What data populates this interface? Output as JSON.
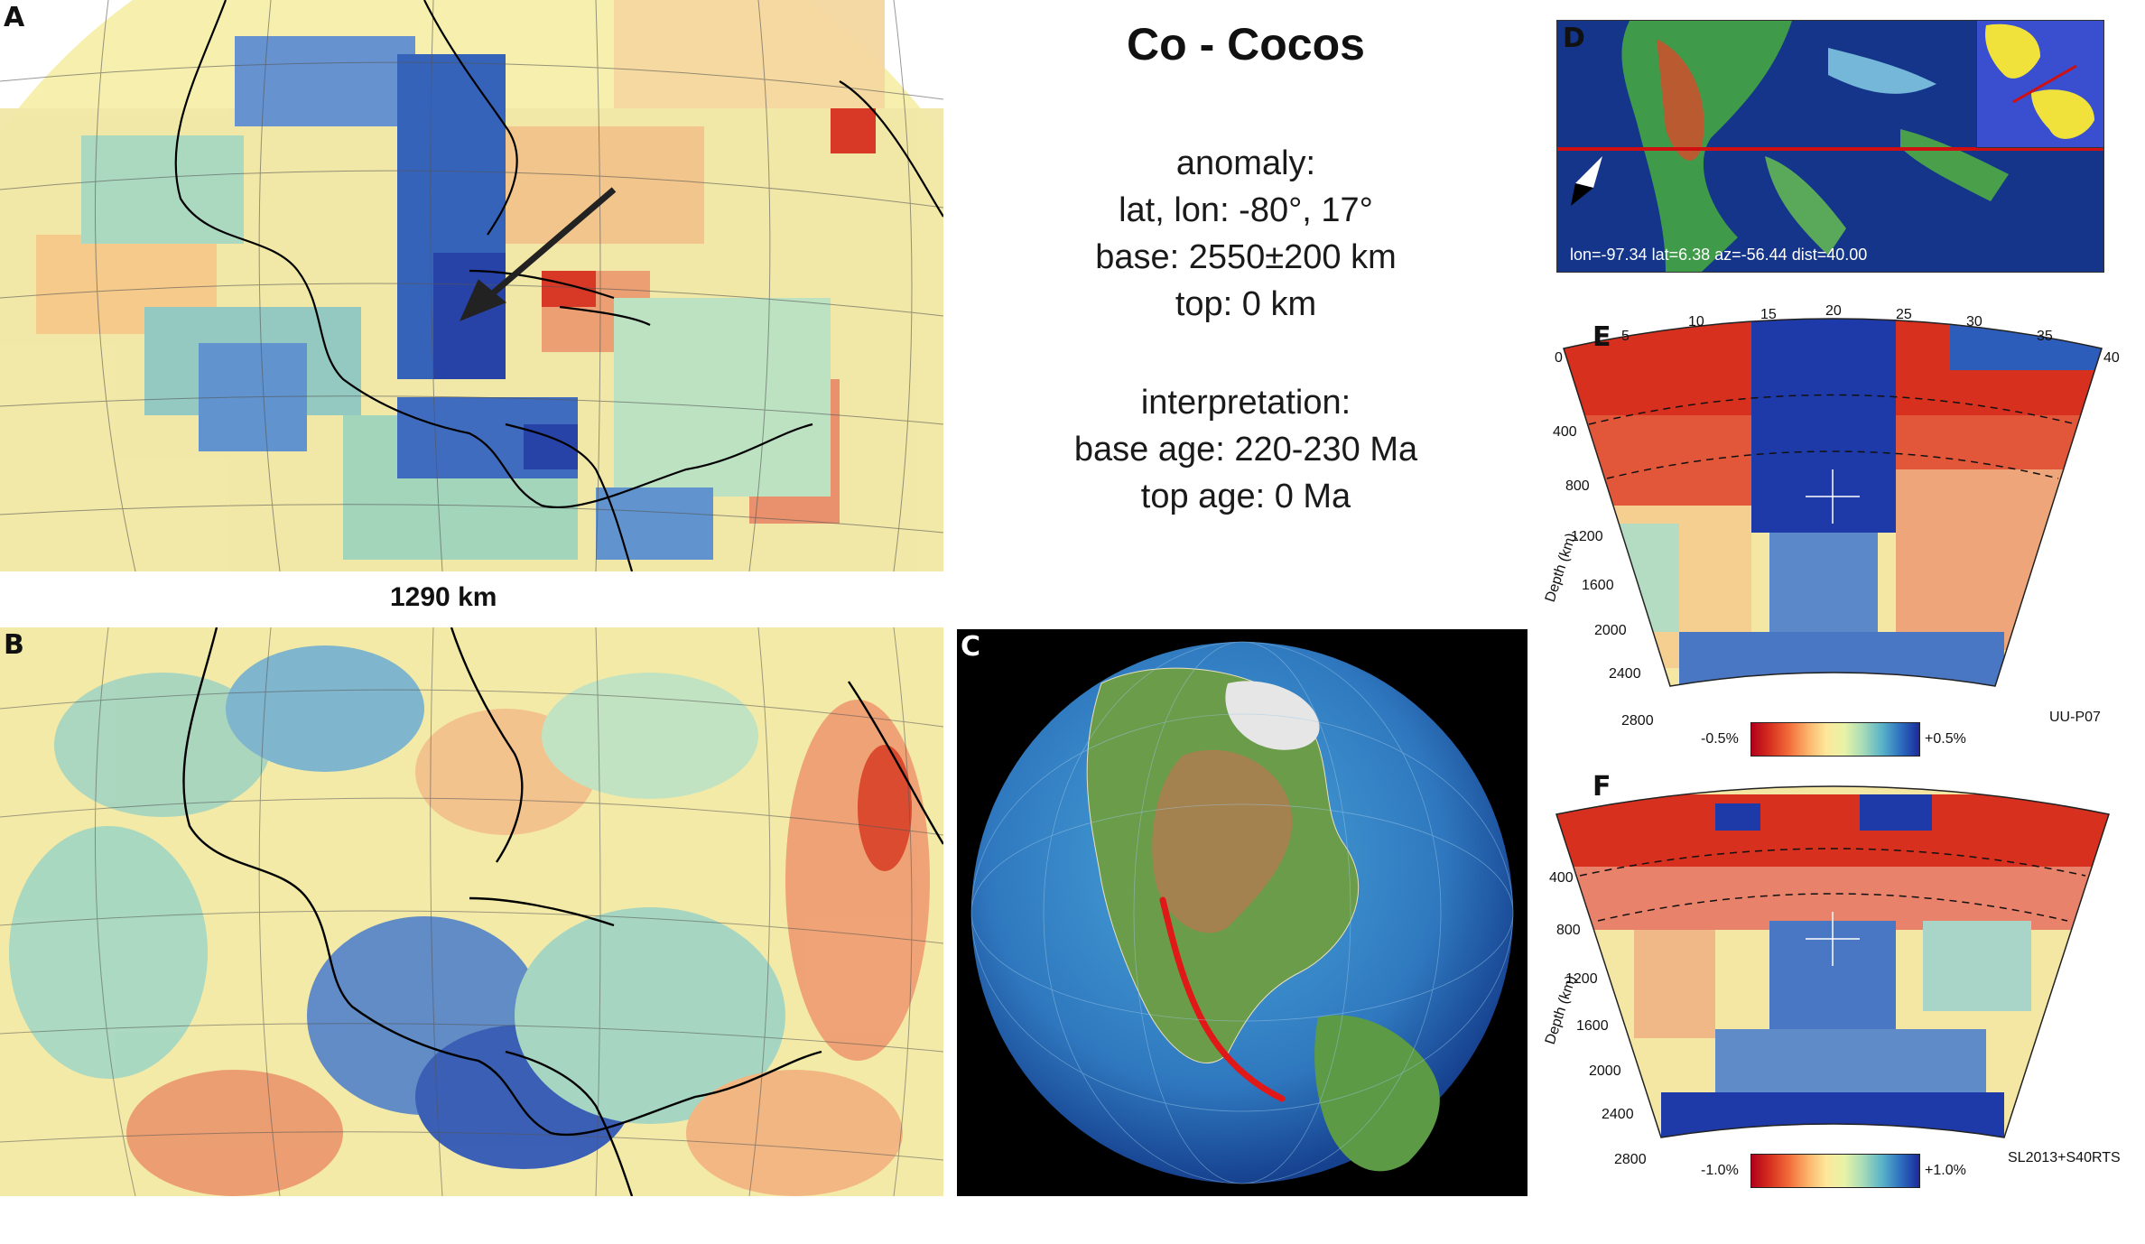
{
  "title": "Co - Cocos",
  "anomaly": {
    "heading": "anomaly:",
    "latlon": "lat, lon: -80°, 17°",
    "base": "base: 2550±200 km",
    "top": "top: 0 km"
  },
  "interpretation": {
    "heading": "interpretation:",
    "base_age": "base age: 220-230 Ma",
    "top_age": "top age: 0 Ma"
  },
  "depth_caption": "1290 km",
  "panels": {
    "a": "A",
    "b": "B",
    "c": "C",
    "d": "D",
    "e": "E",
    "f": "F"
  },
  "map_d": {
    "readout": "lon=-97.34 lat=6.38 az=-56.44 dist=40.00"
  },
  "section_e": {
    "top_ticks": [
      "0",
      "5",
      "10",
      "15",
      "20",
      "25",
      "30",
      "35",
      "40"
    ],
    "depth_ticks": [
      "400",
      "800",
      "1200",
      "1600",
      "2000",
      "2400",
      "2800"
    ],
    "ylabel": "Depth (km)",
    "cb_min": "-0.5%",
    "cb_max": "+0.5%",
    "model": "UU-P07"
  },
  "section_f": {
    "depth_ticks": [
      "400",
      "800",
      "1200",
      "1600",
      "2000",
      "2400",
      "2800"
    ],
    "ylabel": "Depth (km)",
    "cb_min": "-1.0%",
    "cb_max": "+1.0%",
    "model": "SL2013+S40RTS"
  },
  "colors": {
    "fast": "#1e3aa8",
    "slow": "#d7301f",
    "neutral": "#f7f2b0",
    "profile_line": "#d01010"
  }
}
